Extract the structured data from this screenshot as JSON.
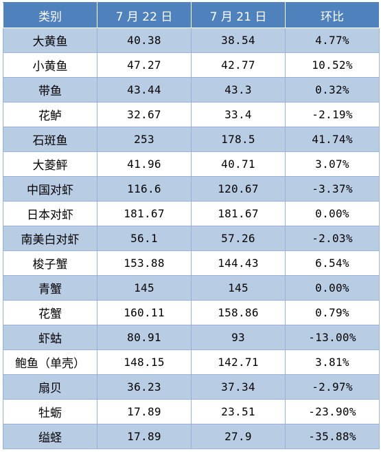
{
  "table": {
    "headers": [
      "类别",
      "7 月 22 日",
      "7 月 21 日",
      "环比"
    ],
    "header_bg": "#4f81bd",
    "band_bg": "#b8cce4",
    "rows": [
      {
        "name": "大黄鱼",
        "d22": "40.38",
        "d21": "38.54",
        "change": "4.77%"
      },
      {
        "name": "小黄鱼",
        "d22": "47.27",
        "d21": "42.77",
        "change": "10.52%"
      },
      {
        "name": "带鱼",
        "d22": "43.44",
        "d21": "43.3",
        "change": "0.32%"
      },
      {
        "name": "花鲈",
        "d22": "32.67",
        "d21": "33.4",
        "change": "-2.19%"
      },
      {
        "name": "石斑鱼",
        "d22": "253",
        "d21": "178.5",
        "change": "41.74%"
      },
      {
        "name": "大菱鲆",
        "d22": "41.96",
        "d21": "40.71",
        "change": "3.07%"
      },
      {
        "name": "中国对虾",
        "d22": "116.6",
        "d21": "120.67",
        "change": "-3.37%"
      },
      {
        "name": "日本对虾",
        "d22": "181.67",
        "d21": "181.67",
        "change": "0.00%"
      },
      {
        "name": "南美白对虾",
        "d22": "56.1",
        "d21": "57.26",
        "change": "-2.03%"
      },
      {
        "name": "梭子蟹",
        "d22": "153.88",
        "d21": "144.43",
        "change": "6.54%"
      },
      {
        "name": "青蟹",
        "d22": "145",
        "d21": "145",
        "change": "0.00%"
      },
      {
        "name": "花蟹",
        "d22": "160.11",
        "d21": "158.86",
        "change": "0.79%"
      },
      {
        "name": "虾蛄",
        "d22": "80.91",
        "d21": "93",
        "change": "-13.00%"
      },
      {
        "name": "鲍鱼（单壳）",
        "d22": "148.15",
        "d21": "142.71",
        "change": "3.81%"
      },
      {
        "name": "扇贝",
        "d22": "36.23",
        "d21": "37.34",
        "change": "-2.97%"
      },
      {
        "name": "牡蛎",
        "d22": "17.89",
        "d21": "23.51",
        "change": "-23.90%"
      },
      {
        "name": "缢蛏",
        "d22": "17.89",
        "d21": "27.9",
        "change": "-35.88%"
      }
    ]
  }
}
